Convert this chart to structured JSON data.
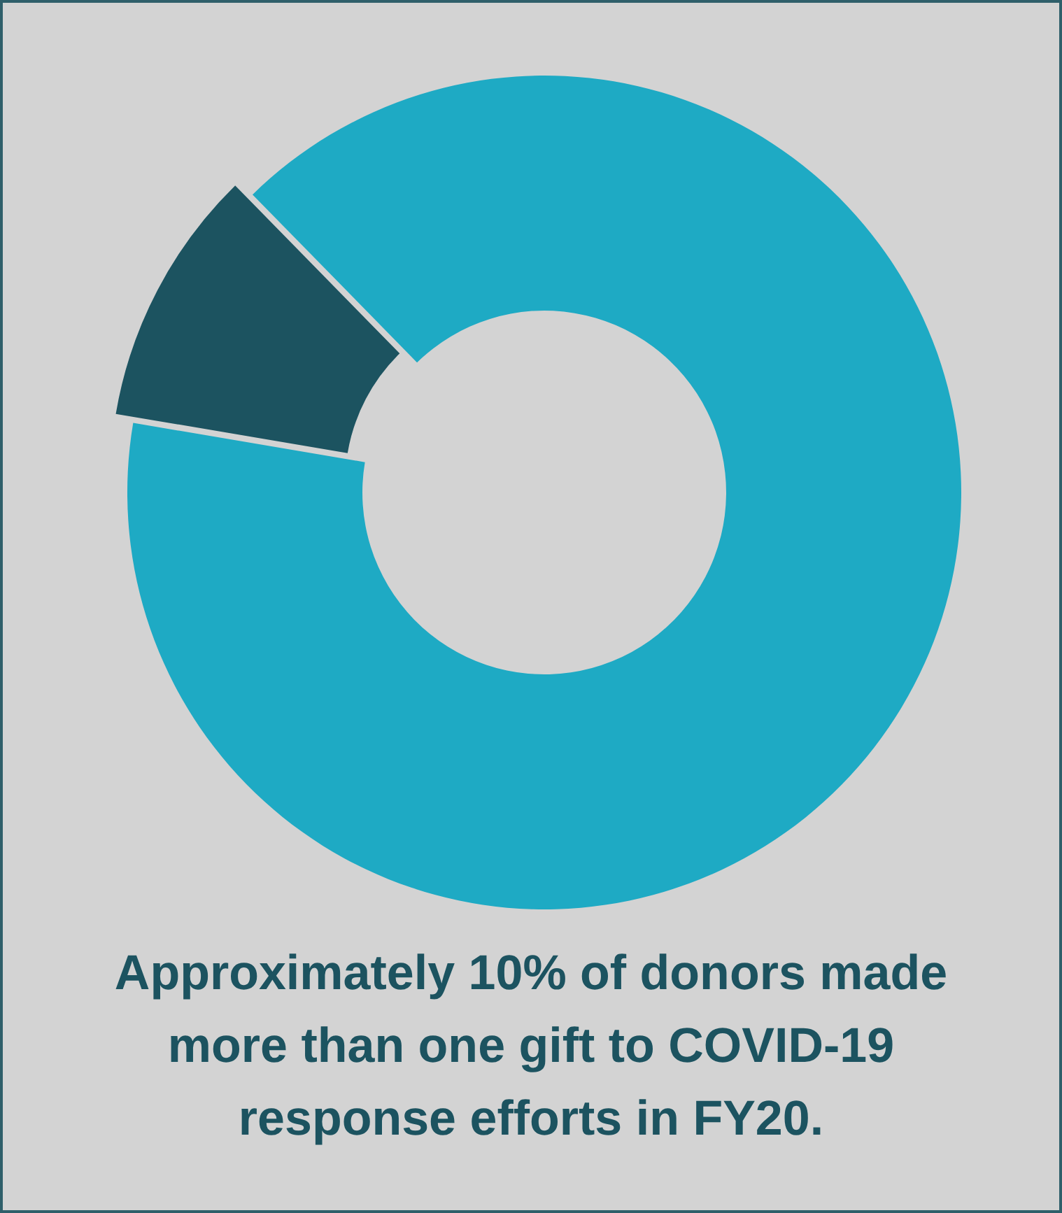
{
  "chart_data": {
    "type": "donut",
    "title": "Approximately 10% of donors made more than one gift to COVID-19 response efforts in FY20.",
    "categories": [
      null,
      null
    ],
    "values": [
      10,
      90
    ],
    "colors": [
      "#1c5360",
      "#1eaac4"
    ]
  }
}
